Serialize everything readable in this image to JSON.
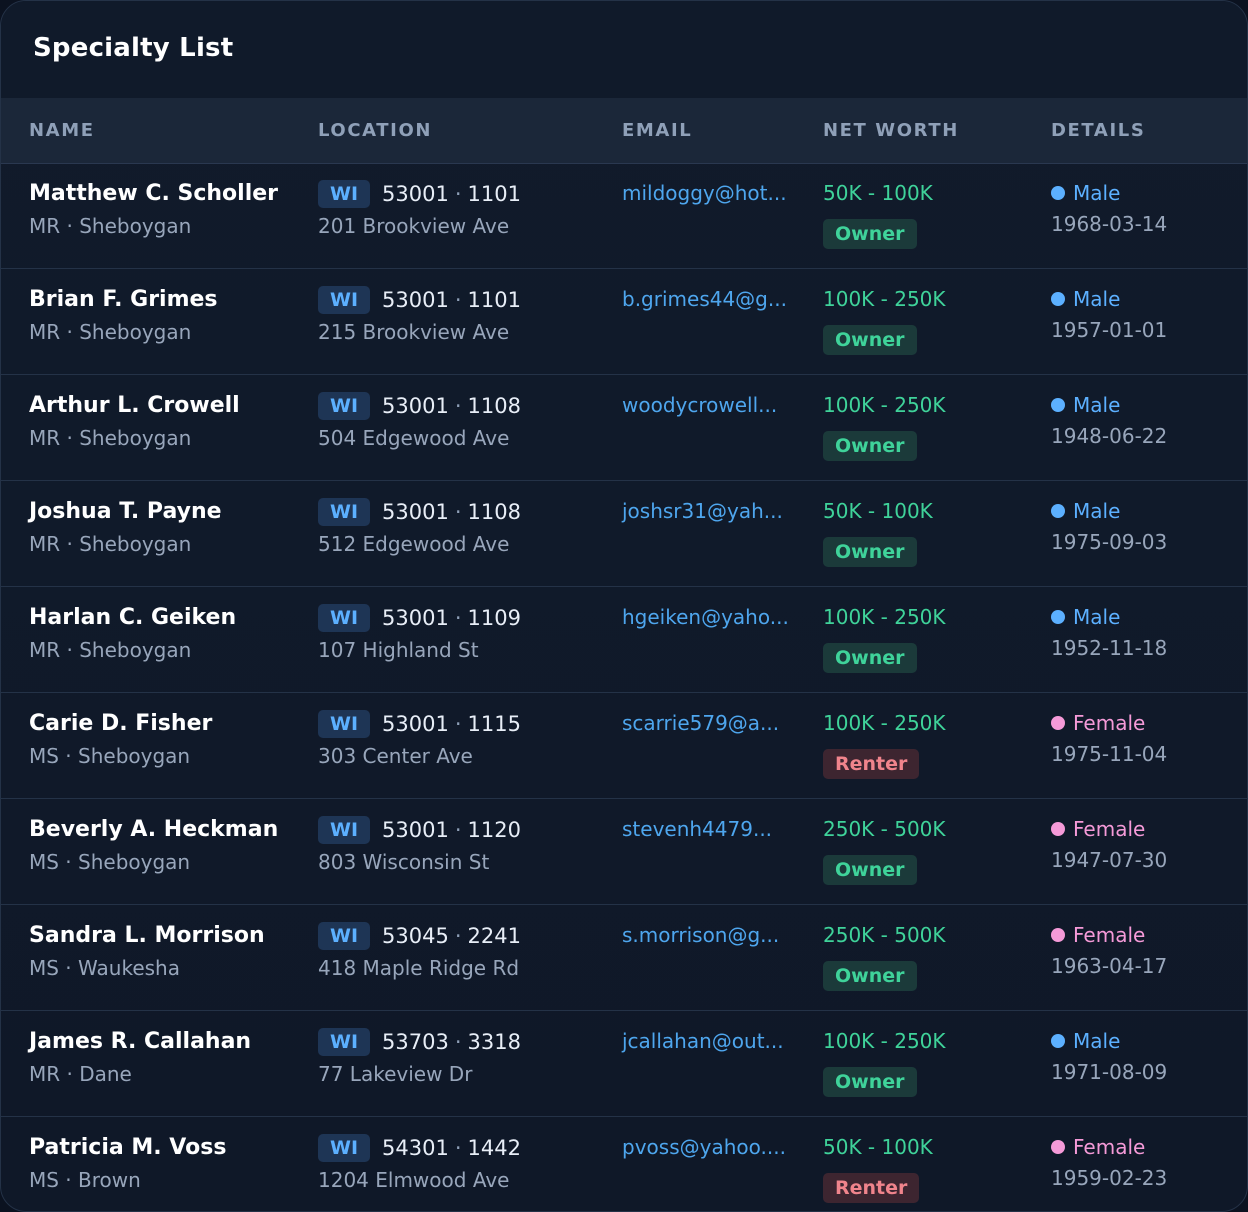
{
  "title": "Specialty List",
  "columns": {
    "name": "NAME",
    "location": "LOCATION",
    "email": "EMAIL",
    "net_worth": "NET WORTH",
    "details": "DETAILS"
  },
  "separator": "·",
  "rows": [
    {
      "name": "Matthew C. Scholler",
      "sub": "MR · Sheboygan",
      "state": "WI",
      "zip": "53001",
      "tract": "1101",
      "address": "201 Brookview Ave",
      "email": "mildoggy@hot...",
      "net_worth": "50K - 100K",
      "status": "Owner",
      "gender": "Male",
      "dob": "1968-03-14"
    },
    {
      "name": "Brian F. Grimes",
      "sub": "MR · Sheboygan",
      "state": "WI",
      "zip": "53001",
      "tract": "1101",
      "address": "215 Brookview Ave",
      "email": "b.grimes44@g...",
      "net_worth": "100K - 250K",
      "status": "Owner",
      "gender": "Male",
      "dob": "1957-01-01"
    },
    {
      "name": "Arthur L. Crowell",
      "sub": "MR · Sheboygan",
      "state": "WI",
      "zip": "53001",
      "tract": "1108",
      "address": "504 Edgewood Ave",
      "email": "woodycrowell...",
      "net_worth": "100K - 250K",
      "status": "Owner",
      "gender": "Male",
      "dob": "1948-06-22"
    },
    {
      "name": "Joshua T. Payne",
      "sub": "MR · Sheboygan",
      "state": "WI",
      "zip": "53001",
      "tract": "1108",
      "address": "512 Edgewood Ave",
      "email": "joshsr31@yah...",
      "net_worth": "50K - 100K",
      "status": "Owner",
      "gender": "Male",
      "dob": "1975-09-03"
    },
    {
      "name": "Harlan C. Geiken",
      "sub": "MR · Sheboygan",
      "state": "WI",
      "zip": "53001",
      "tract": "1109",
      "address": "107 Highland St",
      "email": "hgeiken@yaho...",
      "net_worth": "100K - 250K",
      "status": "Owner",
      "gender": "Male",
      "dob": "1952-11-18"
    },
    {
      "name": "Carie D. Fisher",
      "sub": "MS · Sheboygan",
      "state": "WI",
      "zip": "53001",
      "tract": "1115",
      "address": "303 Center Ave",
      "email": "scarrie579@a...",
      "net_worth": "100K - 250K",
      "status": "Renter",
      "gender": "Female",
      "dob": "1975-11-04"
    },
    {
      "name": "Beverly A. Heckman",
      "sub": "MS · Sheboygan",
      "state": "WI",
      "zip": "53001",
      "tract": "1120",
      "address": "803 Wisconsin St",
      "email": "stevenh4479...",
      "net_worth": "250K - 500K",
      "status": "Owner",
      "gender": "Female",
      "dob": "1947-07-30"
    },
    {
      "name": "Sandra L. Morrison",
      "sub": "MS · Waukesha",
      "state": "WI",
      "zip": "53045",
      "tract": "2241",
      "address": "418 Maple Ridge Rd",
      "email": "s.morrison@g...",
      "net_worth": "250K - 500K",
      "status": "Owner",
      "gender": "Female",
      "dob": "1963-04-17"
    },
    {
      "name": "James R. Callahan",
      "sub": "MR · Dane",
      "state": "WI",
      "zip": "53703",
      "tract": "3318",
      "address": "77 Lakeview Dr",
      "email": "jcallahan@out...",
      "net_worth": "100K - 250K",
      "status": "Owner",
      "gender": "Male",
      "dob": "1971-08-09"
    },
    {
      "name": "Patricia M. Voss",
      "sub": "MS · Brown",
      "state": "WI",
      "zip": "54301",
      "tract": "1442",
      "address": "1204 Elmwood Ave",
      "email": "pvoss@yahoo....",
      "net_worth": "50K - 100K",
      "status": "Renter",
      "gender": "Female",
      "dob": "1959-02-23"
    }
  ]
}
